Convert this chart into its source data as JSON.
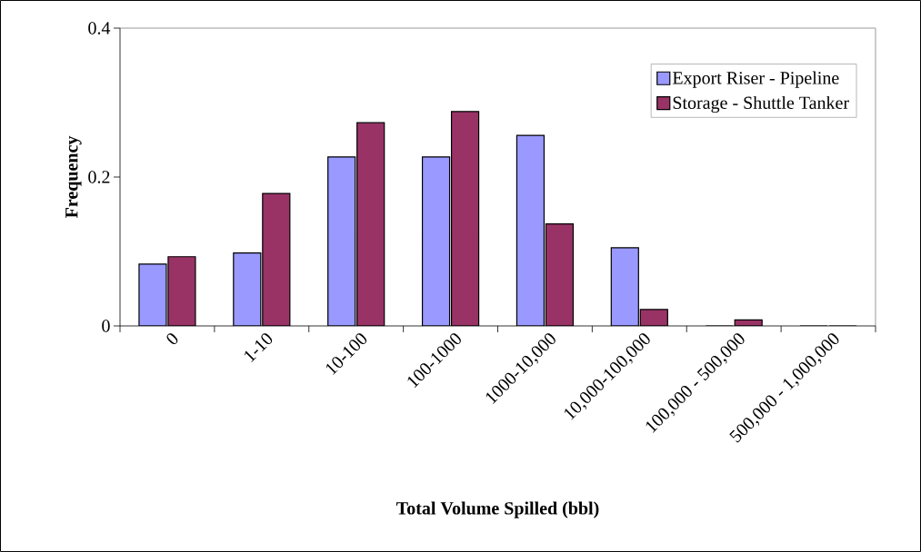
{
  "chart_data": {
    "type": "bar",
    "xlabel": "Total Volume Spilled (bbl)",
    "ylabel": "Frequency",
    "categories": [
      "0",
      "1-10",
      "10-100",
      "100-1000",
      "1000-10,000",
      "10,000-100,000",
      "100,000 - 500,000",
      "500,000 - 1,000,000"
    ],
    "series": [
      {
        "name": "Export Riser - Pipeline",
        "color": "#9999ff",
        "values": [
          0.083,
          0.098,
          0.227,
          0.227,
          0.256,
          0.105,
          0,
          0
        ]
      },
      {
        "name": "Storage - Shuttle Tanker",
        "color": "#993366",
        "values": [
          0.093,
          0.178,
          0.273,
          0.288,
          0.137,
          0.022,
          0.008,
          0
        ]
      }
    ],
    "ylim": [
      0,
      0.4
    ],
    "yticks": [
      0,
      0.2,
      0.4
    ],
    "grid": false,
    "legend": "top right"
  }
}
